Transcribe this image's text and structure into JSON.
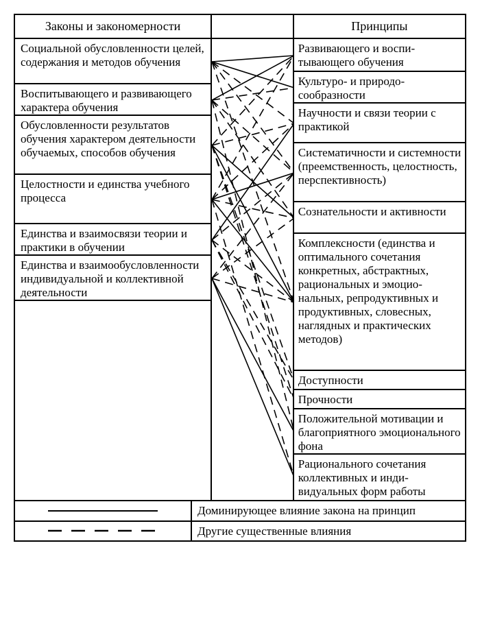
{
  "diagram": {
    "type": "network",
    "background_color": "#ffffff",
    "border_color": "#000000",
    "border_width": 2,
    "font_family": "Times New Roman",
    "header": {
      "left": "Законы и закономерности",
      "right": "Принципы",
      "fontsize": 18
    },
    "left_items": [
      "Социальной обусловленности целей, содержания и методов обучения",
      "Воспитывающего и развиваю­щего характера обучения",
      "Обусловленности результатов обучения характером деятель­ности обучаемых, способов обучения",
      "Целостности и единства учебного процесса",
      "Единства и взаимосвязи теории и практики в обучении",
      "Единства и взаимообуслов­ленности индивидуальной и коллективной деятельности"
    ],
    "right_items": [
      "Развивающего и воспи­тывающего обучения",
      "Культуро- и природо­сообразности",
      "Научности и связи теории с практикой",
      "Систематичности и сис­темности (преемствен­ность, целостность, перспективность)",
      "Сознательности и активности",
      "Комплексности (един­ства и оптимального сочетания конкретных, абстрактных, рацио­нальных и эмоцио­нальных, репродуктив­ных и продуктивных, словесных, наглядных и практических методов)",
      "Доступности",
      "Прочности",
      "Положительной моти­вации и благоприятного эмоционального фона",
      "Рационального сочетания коллективных и инди­видуальных форм работы"
    ],
    "legend": {
      "solid": "Доминирующее влияние закона на принцип",
      "dashed": "Другие существенные влияния",
      "fontsize": 17
    },
    "left_heights": [
      66,
      46,
      86,
      72,
      46,
      66
    ],
    "right_heights": [
      48,
      46,
      58,
      86,
      46,
      200,
      28,
      28,
      66,
      66
    ],
    "edge_style": {
      "stroke": "#000000",
      "stroke_width": 1.6,
      "dash_pattern": "12,8"
    },
    "edges_solid": [
      [
        0,
        0
      ],
      [
        0,
        1
      ],
      [
        1,
        0
      ],
      [
        2,
        4
      ],
      [
        2,
        5
      ],
      [
        3,
        3
      ],
      [
        3,
        5
      ],
      [
        4,
        2
      ],
      [
        5,
        9
      ],
      [
        5,
        8
      ]
    ],
    "edges_dashed": [
      [
        0,
        2
      ],
      [
        0,
        3
      ],
      [
        0,
        5
      ],
      [
        1,
        1
      ],
      [
        1,
        3
      ],
      [
        1,
        4
      ],
      [
        1,
        8
      ],
      [
        2,
        0
      ],
      [
        2,
        2
      ],
      [
        2,
        6
      ],
      [
        2,
        7
      ],
      [
        3,
        0
      ],
      [
        3,
        2
      ],
      [
        3,
        4
      ],
      [
        3,
        9
      ],
      [
        4,
        3
      ],
      [
        4,
        5
      ],
      [
        4,
        6
      ],
      [
        4,
        7
      ],
      [
        5,
        4
      ],
      [
        5,
        5
      ],
      [
        5,
        3
      ]
    ]
  }
}
